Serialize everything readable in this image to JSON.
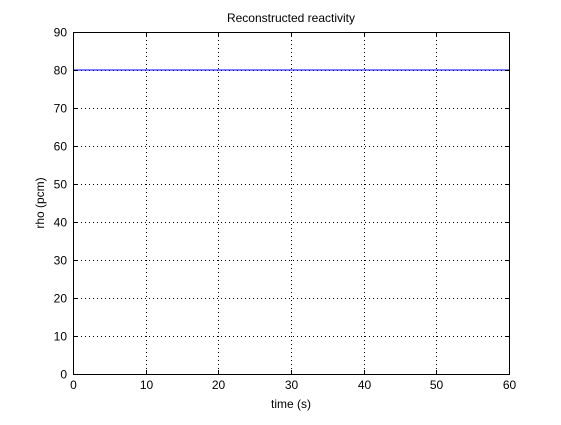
{
  "chart_data": {
    "type": "line",
    "title": "Reconstructed reactivity",
    "xlabel": "time (s)",
    "ylabel": "rho (pcm)",
    "xlim": [
      0,
      60
    ],
    "ylim": [
      0,
      90
    ],
    "xticks": [
      0,
      10,
      20,
      30,
      40,
      50,
      60
    ],
    "yticks": [
      0,
      10,
      20,
      30,
      40,
      50,
      60,
      70,
      80,
      90
    ],
    "grid": true,
    "series": [
      {
        "color": "#0000ff",
        "x": [
          0,
          60
        ],
        "y": [
          80,
          80
        ]
      }
    ]
  }
}
